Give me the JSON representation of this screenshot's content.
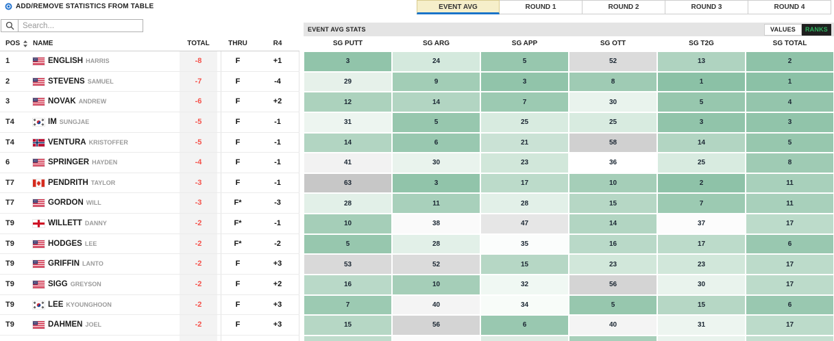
{
  "header": {
    "add_remove_label": "ADD/REMOVE STATISTICS FROM TABLE",
    "search_placeholder": "Search...",
    "tabs": [
      {
        "label": "EVENT AVG",
        "active": true
      },
      {
        "label": "ROUND 1",
        "active": false
      },
      {
        "label": "ROUND 2",
        "active": false
      },
      {
        "label": "ROUND 3",
        "active": false
      },
      {
        "label": "ROUND 4",
        "active": false
      }
    ],
    "stats_bar_label": "EVENT AVG STATS",
    "values_label": "VALUES",
    "ranks_label": "RANKS"
  },
  "table": {
    "left_columns": [
      "POS",
      "NAME",
      "TOTAL",
      "THRU",
      "R4"
    ],
    "stat_columns": [
      "SG PUTT",
      "SG ARG",
      "SG APP",
      "SG OTT",
      "SG T2G",
      "SG TOTAL"
    ],
    "rows": [
      {
        "pos": "1",
        "country": "USA",
        "last": "ENGLISH",
        "first": "HARRIS",
        "total": "-8",
        "thru": "F",
        "r4": "+1",
        "ranks": [
          3,
          24,
          5,
          52,
          13,
          2
        ]
      },
      {
        "pos": "2",
        "country": "USA",
        "last": "STEVENS",
        "first": "SAMUEL",
        "total": "-7",
        "thru": "F",
        "r4": "-4",
        "ranks": [
          29,
          9,
          3,
          8,
          1,
          1
        ]
      },
      {
        "pos": "3",
        "country": "USA",
        "last": "NOVAK",
        "first": "ANDREW",
        "total": "-6",
        "thru": "F",
        "r4": "+2",
        "ranks": [
          12,
          14,
          7,
          30,
          5,
          4
        ]
      },
      {
        "pos": "T4",
        "country": "KOR",
        "last": "IM",
        "first": "SUNGJAE",
        "total": "-5",
        "thru": "F",
        "r4": "-1",
        "ranks": [
          31,
          5,
          25,
          25,
          3,
          3
        ]
      },
      {
        "pos": "T4",
        "country": "NOR",
        "last": "VENTURA",
        "first": "KRISTOFFER",
        "total": "-5",
        "thru": "F",
        "r4": "-1",
        "ranks": [
          14,
          6,
          21,
          58,
          14,
          5
        ]
      },
      {
        "pos": "6",
        "country": "USA",
        "last": "SPRINGER",
        "first": "HAYDEN",
        "total": "-4",
        "thru": "F",
        "r4": "-1",
        "ranks": [
          41,
          30,
          23,
          36,
          25,
          8
        ]
      },
      {
        "pos": "T7",
        "country": "CAN",
        "last": "PENDRITH",
        "first": "TAYLOR",
        "total": "-3",
        "thru": "F",
        "r4": "-1",
        "ranks": [
          63,
          3,
          17,
          10,
          2,
          11
        ]
      },
      {
        "pos": "T7",
        "country": "USA",
        "last": "GORDON",
        "first": "WILL",
        "total": "-3",
        "thru": "F*",
        "r4": "-3",
        "ranks": [
          28,
          11,
          28,
          15,
          7,
          11
        ]
      },
      {
        "pos": "T9",
        "country": "ENG",
        "last": "WILLETT",
        "first": "DANNY",
        "total": "-2",
        "thru": "F*",
        "r4": "-1",
        "ranks": [
          10,
          38,
          47,
          14,
          37,
          17
        ]
      },
      {
        "pos": "T9",
        "country": "USA",
        "last": "HODGES",
        "first": "LEE",
        "total": "-2",
        "thru": "F*",
        "r4": "-2",
        "ranks": [
          5,
          28,
          35,
          16,
          17,
          6
        ]
      },
      {
        "pos": "T9",
        "country": "USA",
        "last": "GRIFFIN",
        "first": "LANTO",
        "total": "-2",
        "thru": "F",
        "r4": "+3",
        "ranks": [
          53,
          52,
          15,
          23,
          23,
          17
        ]
      },
      {
        "pos": "T9",
        "country": "USA",
        "last": "SIGG",
        "first": "GREYSON",
        "total": "-2",
        "thru": "F",
        "r4": "+2",
        "ranks": [
          16,
          10,
          32,
          56,
          30,
          17
        ]
      },
      {
        "pos": "T9",
        "country": "KOR",
        "last": "LEE",
        "first": "KYOUNGHOON",
        "total": "-2",
        "thru": "F",
        "r4": "+3",
        "ranks": [
          7,
          40,
          34,
          5,
          15,
          6
        ]
      },
      {
        "pos": "T9",
        "country": "USA",
        "last": "DAHMEN",
        "first": "JOEL",
        "total": "-2",
        "thru": "F",
        "r4": "+3",
        "ranks": [
          15,
          56,
          6,
          40,
          31,
          17
        ]
      }
    ],
    "partial_row_colors": [
      "#bfdccc",
      "#fbfbfb",
      "#dcebe2",
      "#a8cfba",
      "#e9f3ed",
      "#c4dfd0"
    ]
  },
  "colors": {
    "accent_blue": "#1a74c9",
    "active_tab_bg": "#f6efca",
    "active_tab_border": "#d9cb8e",
    "stats_bar_bg": "#e4e4e4",
    "ranks_button_bg": "#1f1f1f",
    "ranks_button_text": "#2fb05e",
    "total_text": "#f5514a",
    "rank_scale": [
      [
        1,
        "#8bc1a6"
      ],
      [
        10,
        "#a5ceb8"
      ],
      [
        20,
        "#c6e0d2"
      ],
      [
        25,
        "#d8ebe0"
      ],
      [
        30,
        "#e9f3ed"
      ],
      [
        33,
        "#f4faf6"
      ],
      [
        36,
        "#ffffff"
      ],
      [
        40,
        "#f4f4f4"
      ],
      [
        47,
        "#e6e6e6"
      ],
      [
        52,
        "#dbdbdb"
      ],
      [
        58,
        "#d0d0d0"
      ],
      [
        63,
        "#c7c7c7"
      ],
      [
        70,
        "#c2c2c2"
      ]
    ]
  }
}
